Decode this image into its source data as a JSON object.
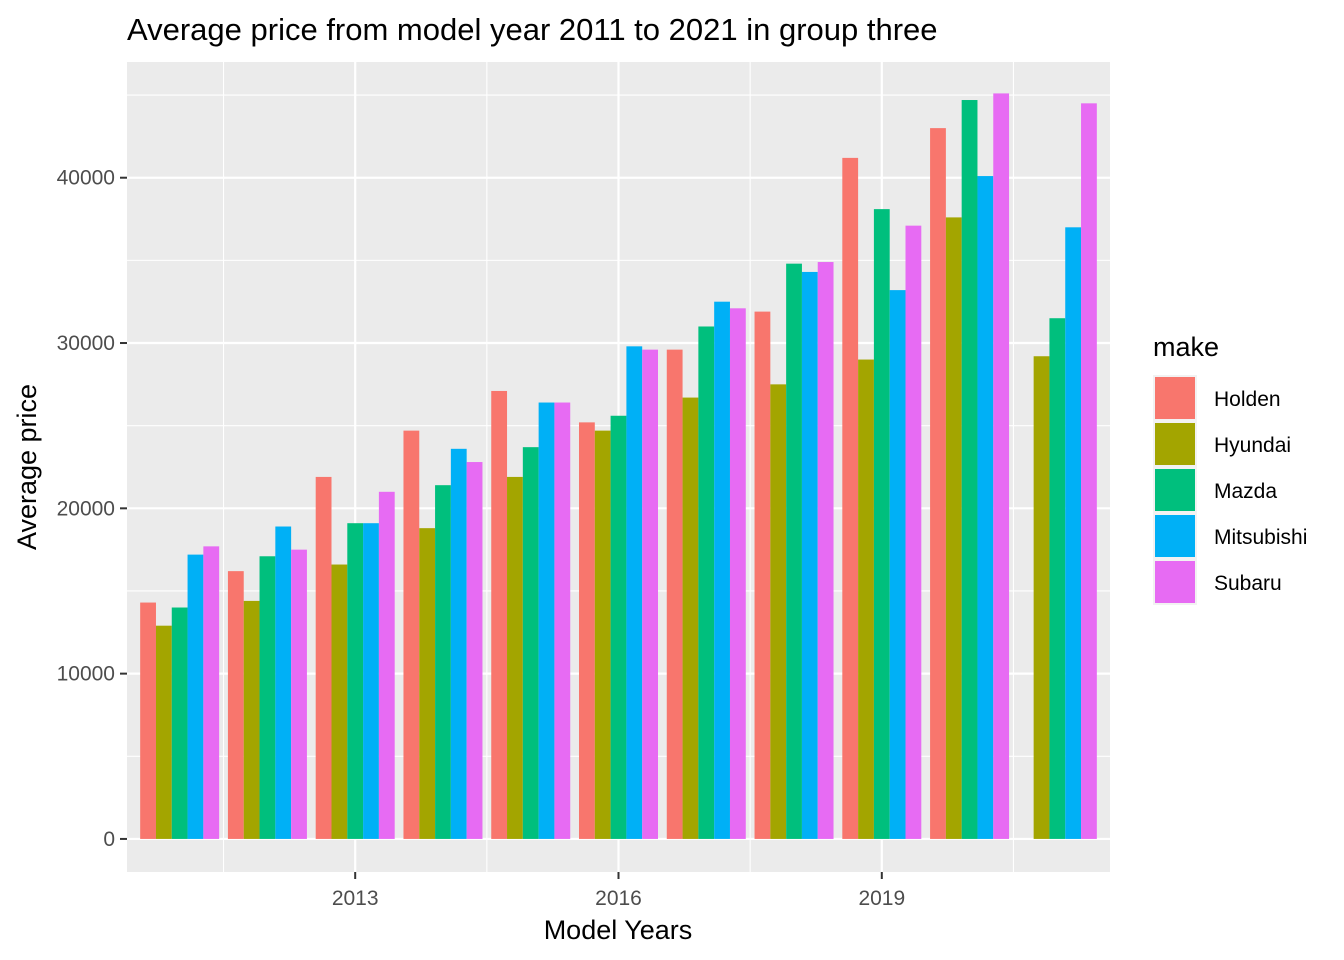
{
  "chart_data": {
    "type": "bar",
    "title": "Average price from model year 2011 to 2021 in group three",
    "xlabel": "Model Years",
    "ylabel": "Average price",
    "categories": [
      "2011",
      "2012",
      "2013",
      "2014",
      "2015",
      "2016",
      "2017",
      "2018",
      "2019",
      "2020",
      "2021"
    ],
    "x_ticks": [
      "2013",
      "2016",
      "2019"
    ],
    "y_ticks": [
      0,
      10000,
      20000,
      30000,
      40000
    ],
    "ylim": [
      -2000,
      47000
    ],
    "grid": true,
    "legend": {
      "title": "make",
      "position": "right"
    },
    "series": [
      {
        "name": "Holden",
        "color": "#F8766D",
        "values": [
          14300,
          16200,
          21900,
          24700,
          27100,
          25200,
          29600,
          31900,
          41200,
          43000,
          null
        ]
      },
      {
        "name": "Hyundai",
        "color": "#A3A500",
        "values": [
          12900,
          14400,
          16600,
          18800,
          21900,
          24700,
          26700,
          27500,
          29000,
          37600,
          29200
        ]
      },
      {
        "name": "Mazda",
        "color": "#00BF7D",
        "values": [
          14000,
          17100,
          19100,
          21400,
          23700,
          25600,
          31000,
          34800,
          38100,
          44700,
          31500
        ]
      },
      {
        "name": "Mitsubishi",
        "color": "#00B0F6",
        "values": [
          17200,
          18900,
          19100,
          23600,
          26400,
          29800,
          32500,
          34300,
          33200,
          40100,
          37000
        ]
      },
      {
        "name": "Subaru",
        "color": "#E76BF3",
        "values": [
          17700,
          17500,
          21000,
          22800,
          26400,
          29600,
          32100,
          34900,
          37100,
          45100,
          44500
        ]
      }
    ]
  }
}
